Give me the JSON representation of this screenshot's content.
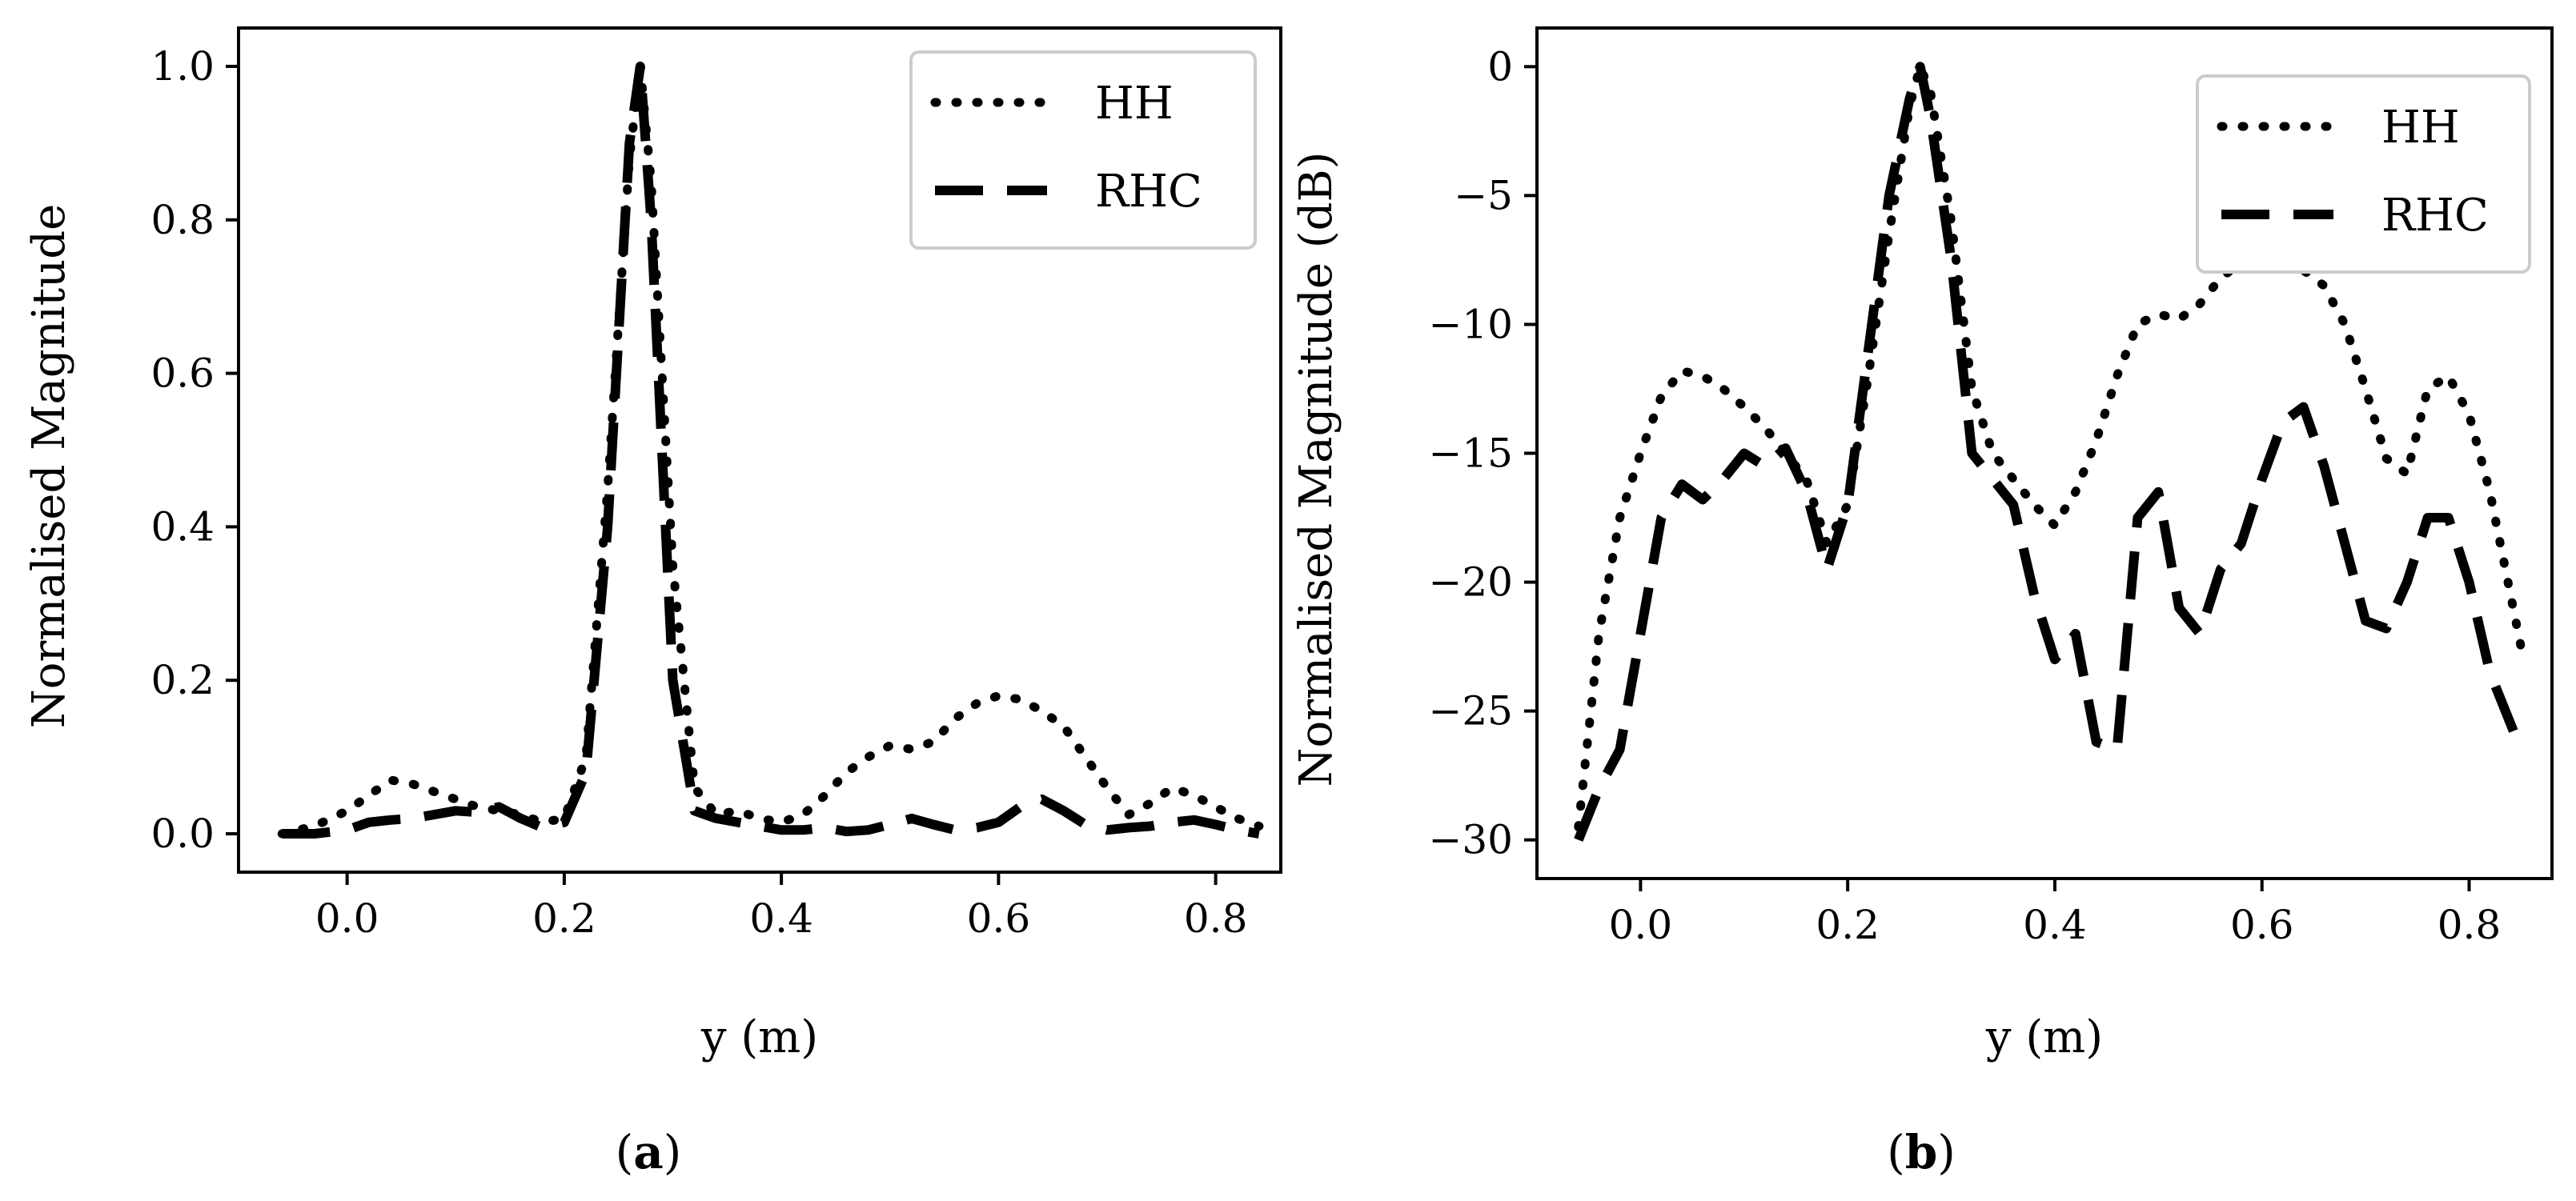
{
  "chart_data": [
    {
      "id": "a",
      "type": "line",
      "caption": "a",
      "xlabel": "y (m)",
      "ylabel": "Normalised Magnitude",
      "xlim": [
        -0.1,
        0.86
      ],
      "ylim": [
        -0.05,
        1.05
      ],
      "xticks": [
        0.0,
        0.2,
        0.4,
        0.6,
        0.8
      ],
      "xtick_labels": [
        "0.0",
        "0.2",
        "0.4",
        "0.6",
        "0.8"
      ],
      "yticks": [
        0.0,
        0.2,
        0.4,
        0.6,
        0.8,
        1.0
      ],
      "ytick_labels": [
        "0.0",
        "0.2",
        "0.4",
        "0.6",
        "0.8",
        "1.0"
      ],
      "legend_position": "top-right",
      "series": [
        {
          "name": "HH",
          "style": "dotted",
          "x": [
            -0.06,
            -0.03,
            0.0,
            0.02,
            0.04,
            0.06,
            0.08,
            0.1,
            0.12,
            0.14,
            0.16,
            0.18,
            0.2,
            0.22,
            0.24,
            0.26,
            0.27,
            0.28,
            0.3,
            0.32,
            0.34,
            0.36,
            0.38,
            0.4,
            0.42,
            0.44,
            0.46,
            0.48,
            0.5,
            0.52,
            0.54,
            0.56,
            0.58,
            0.6,
            0.62,
            0.64,
            0.66,
            0.68,
            0.7,
            0.72,
            0.74,
            0.76,
            0.78,
            0.8,
            0.82,
            0.84
          ],
          "y": [
            0.0,
            0.01,
            0.03,
            0.05,
            0.07,
            0.065,
            0.055,
            0.045,
            0.035,
            0.03,
            0.025,
            0.015,
            0.02,
            0.1,
            0.45,
            0.88,
            1.0,
            0.85,
            0.35,
            0.06,
            0.025,
            0.03,
            0.02,
            0.015,
            0.025,
            0.05,
            0.08,
            0.1,
            0.115,
            0.11,
            0.12,
            0.15,
            0.17,
            0.18,
            0.175,
            0.16,
            0.14,
            0.1,
            0.06,
            0.025,
            0.04,
            0.06,
            0.05,
            0.035,
            0.02,
            0.01
          ]
        },
        {
          "name": "RHC",
          "style": "dashed",
          "x": [
            -0.06,
            -0.03,
            0.0,
            0.02,
            0.04,
            0.06,
            0.08,
            0.1,
            0.12,
            0.14,
            0.16,
            0.18,
            0.2,
            0.22,
            0.24,
            0.26,
            0.27,
            0.28,
            0.3,
            0.32,
            0.34,
            0.36,
            0.38,
            0.4,
            0.42,
            0.44,
            0.46,
            0.48,
            0.5,
            0.52,
            0.54,
            0.56,
            0.58,
            0.6,
            0.62,
            0.64,
            0.66,
            0.68,
            0.7,
            0.72,
            0.74,
            0.76,
            0.78,
            0.8,
            0.82,
            0.84
          ],
          "y": [
            0.0,
            0.0,
            0.005,
            0.015,
            0.018,
            0.02,
            0.025,
            0.03,
            0.028,
            0.035,
            0.02,
            0.008,
            0.015,
            0.08,
            0.4,
            0.9,
            1.0,
            0.8,
            0.2,
            0.03,
            0.02,
            0.015,
            0.01,
            0.005,
            0.005,
            0.008,
            0.003,
            0.005,
            0.012,
            0.02,
            0.012,
            0.005,
            0.008,
            0.015,
            0.035,
            0.045,
            0.03,
            0.012,
            0.005,
            0.008,
            0.01,
            0.015,
            0.018,
            0.012,
            0.005,
            0.0
          ]
        }
      ]
    },
    {
      "id": "b",
      "type": "line",
      "caption": "b",
      "xlabel": "y (m)",
      "ylabel": "Normalised Magnitude (dB)",
      "xlim": [
        -0.1,
        0.88
      ],
      "ylim": [
        -31.5,
        1.5
      ],
      "xticks": [
        0.0,
        0.2,
        0.4,
        0.6,
        0.8
      ],
      "xtick_labels": [
        "0.0",
        "0.2",
        "0.4",
        "0.6",
        "0.8"
      ],
      "yticks": [
        0,
        -5,
        -10,
        -15,
        -20,
        -25,
        -30
      ],
      "ytick_labels": [
        "0",
        "−5",
        "−10",
        "−15",
        "−20",
        "−25",
        "−30"
      ],
      "legend_position": "top-right",
      "series": [
        {
          "name": "HH",
          "style": "dotted",
          "x": [
            -0.06,
            -0.04,
            -0.02,
            0.0,
            0.02,
            0.04,
            0.06,
            0.08,
            0.1,
            0.12,
            0.14,
            0.16,
            0.18,
            0.2,
            0.22,
            0.24,
            0.26,
            0.27,
            0.28,
            0.3,
            0.32,
            0.34,
            0.36,
            0.38,
            0.4,
            0.42,
            0.44,
            0.46,
            0.48,
            0.5,
            0.52,
            0.54,
            0.56,
            0.58,
            0.6,
            0.62,
            0.64,
            0.66,
            0.68,
            0.7,
            0.72,
            0.74,
            0.76,
            0.78,
            0.8,
            0.82,
            0.85
          ],
          "y": [
            -29.5,
            -22.0,
            -17.5,
            -15.0,
            -12.8,
            -11.8,
            -12.0,
            -12.5,
            -13.2,
            -14.0,
            -15.0,
            -16.0,
            -18.5,
            -17.0,
            -12.0,
            -6.5,
            -1.5,
            0.0,
            -1.0,
            -6.0,
            -12.5,
            -15.0,
            -16.0,
            -17.0,
            -17.8,
            -16.5,
            -14.5,
            -12.0,
            -10.0,
            -9.6,
            -9.8,
            -9.2,
            -8.2,
            -7.6,
            -7.5,
            -7.6,
            -7.9,
            -8.5,
            -10.0,
            -12.5,
            -15.2,
            -15.8,
            -12.5,
            -12.0,
            -13.5,
            -16.5,
            -22.5
          ]
        },
        {
          "name": "RHC",
          "style": "dashed",
          "x": [
            -0.06,
            -0.04,
            -0.02,
            0.0,
            0.02,
            0.04,
            0.06,
            0.08,
            0.1,
            0.12,
            0.14,
            0.16,
            0.18,
            0.2,
            0.22,
            0.24,
            0.26,
            0.27,
            0.28,
            0.3,
            0.32,
            0.34,
            0.36,
            0.38,
            0.4,
            0.42,
            0.44,
            0.46,
            0.48,
            0.5,
            0.52,
            0.54,
            0.56,
            0.58,
            0.6,
            0.62,
            0.64,
            0.66,
            0.68,
            0.7,
            0.72,
            0.74,
            0.76,
            0.78,
            0.8,
            0.82,
            0.85
          ],
          "y": [
            -30.0,
            -28.0,
            -26.5,
            -22.0,
            -17.5,
            -16.2,
            -16.8,
            -16.0,
            -15.0,
            -15.5,
            -14.8,
            -16.5,
            -19.5,
            -17.0,
            -11.0,
            -5.0,
            -1.2,
            0.0,
            -2.0,
            -7.5,
            -15.0,
            -16.0,
            -17.0,
            -20.5,
            -23.0,
            -22.0,
            -26.2,
            -26.5,
            -17.5,
            -16.5,
            -21.0,
            -22.0,
            -19.5,
            -18.5,
            -16.0,
            -13.8,
            -13.2,
            -15.5,
            -18.5,
            -21.5,
            -21.8,
            -20.0,
            -17.5,
            -17.5,
            -20.0,
            -23.5,
            -26.5
          ]
        }
      ]
    }
  ]
}
